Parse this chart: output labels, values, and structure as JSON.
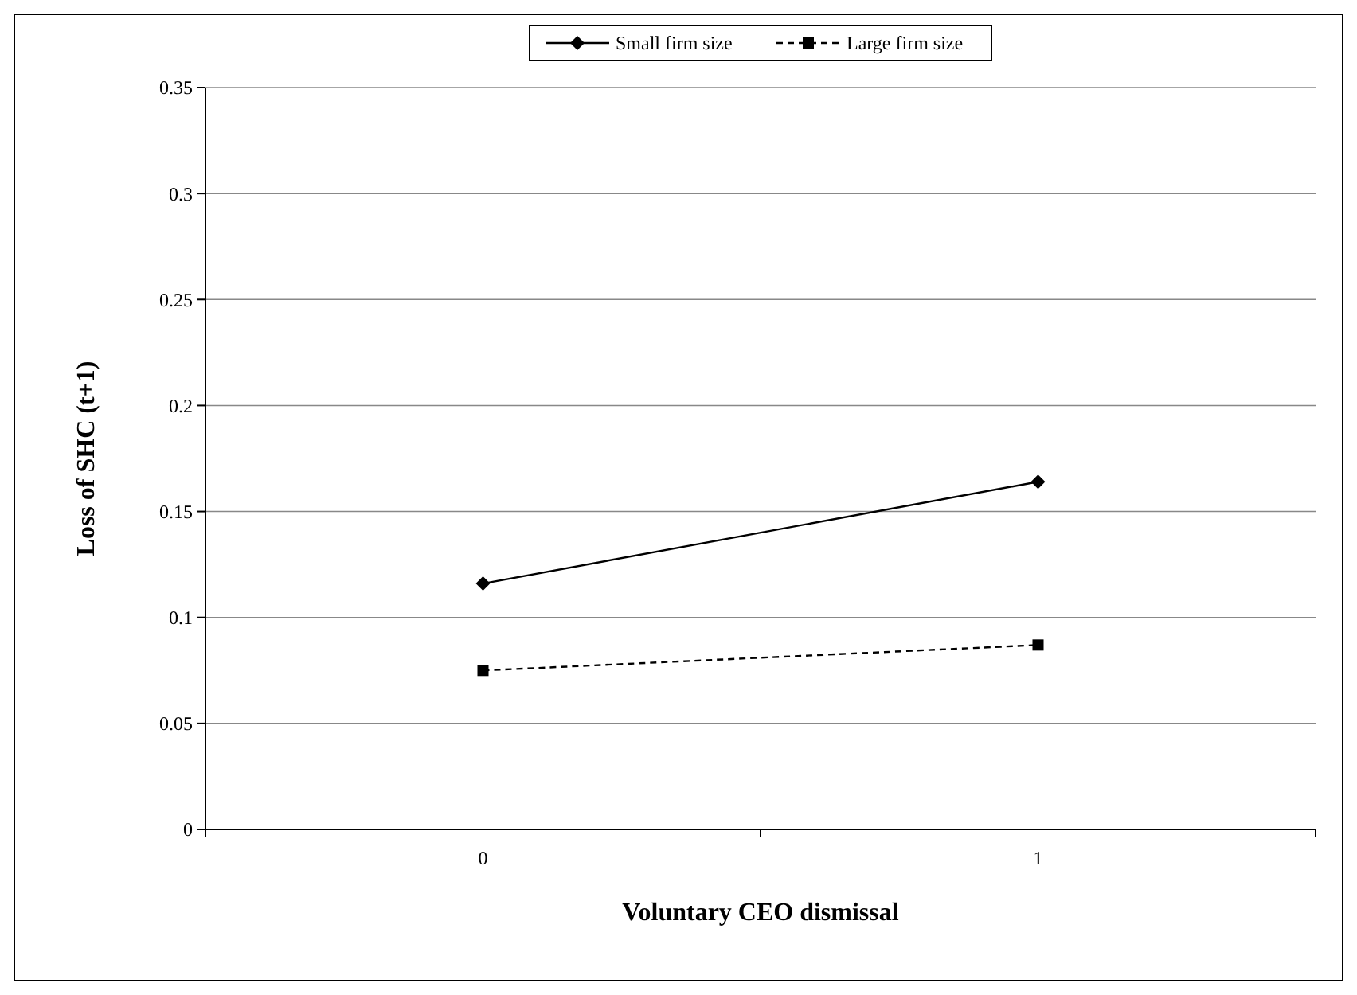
{
  "chart_data": {
    "type": "line",
    "xlabel": "Voluntary CEO dismissal",
    "ylabel": "Loss of SHC (t+1)",
    "categories": [
      "0",
      "1"
    ],
    "series": [
      {
        "name": "Small firm size",
        "color": "#000000",
        "values": [
          0.116,
          0.164
        ],
        "marker": "diamond",
        "line_style": "solid"
      },
      {
        "name": "Large firm size",
        "color": "#000000",
        "values": [
          0.075,
          0.087
        ],
        "marker": "square",
        "line_style": "dashed"
      }
    ],
    "ylim": [
      0,
      0.35
    ],
    "yticks": [
      0,
      0.05,
      0.1,
      0.15,
      0.2,
      0.25,
      0.3,
      0.35
    ],
    "grid": "y",
    "legend": "top"
  }
}
